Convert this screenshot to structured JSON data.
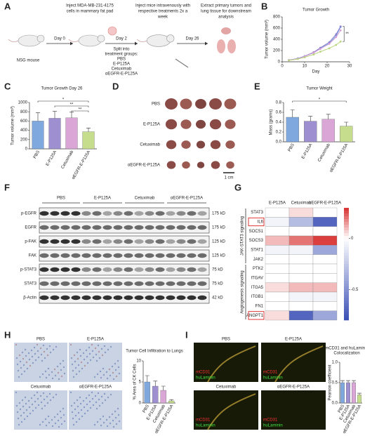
{
  "panel_letters": [
    "A",
    "B",
    "C",
    "D",
    "E",
    "F",
    "G",
    "H",
    "I"
  ],
  "panel_a": {
    "mouse_label": "NSG mouse",
    "days": [
      "Day 0",
      "Day 2",
      "Day 26"
    ],
    "step_1": [
      "Inject MDA-MB-231-4175",
      "cells in mammary fat pad"
    ],
    "step_2": [
      "Inject mice intravenously with",
      "respective treatments 2x a",
      "week"
    ],
    "step_3": [
      "Extract primary tumors and",
      "lung tissue for downstream",
      "analysis"
    ],
    "groups_title": [
      "Split into",
      "treatment groups:"
    ],
    "groups": [
      "PBS",
      "E-P125A",
      "Cetuximab",
      "αEGFR-E-P125A"
    ]
  },
  "chart_b": {
    "type": "line",
    "title": "Tumor Growth",
    "xlabel": "Day",
    "ylabel": "Tumor volume (mm³)",
    "x": [
      3,
      7,
      10,
      14,
      17,
      21,
      24,
      26
    ],
    "series": [
      {
        "color": "#6f9fe0",
        "values": [
          30,
          60,
          100,
          160,
          240,
          330,
          460,
          620
        ]
      },
      {
        "color": "#8a7fd0",
        "values": [
          30,
          60,
          100,
          170,
          250,
          350,
          490,
          630
        ]
      },
      {
        "color": "#d79fd4",
        "values": [
          30,
          55,
          95,
          160,
          230,
          320,
          440,
          560
        ]
      },
      {
        "color": "#b9d57e",
        "values": [
          25,
          50,
          80,
          130,
          180,
          240,
          300,
          360
        ]
      }
    ],
    "xlim": [
      0,
      30
    ],
    "xticks": [
      0,
      10,
      20,
      30
    ],
    "ylim": [
      0,
      800
    ],
    "yticks": [
      0,
      200,
      400,
      600,
      800
    ],
    "annotation": "**"
  },
  "chart_c": {
    "type": "bar",
    "title": "Tumor Growth Day 26",
    "ylabel": "Tumor volume (mm³)",
    "categories": [
      "PBS",
      "E-P125A",
      "Cetuximab",
      "αEGFR-E-P125A"
    ],
    "values": [
      600,
      660,
      670,
      370
    ],
    "errors": [
      180,
      150,
      120,
      80
    ],
    "colors": [
      "#7fa8de",
      "#9d8fd0",
      "#d9a6d6",
      "#c6dd8d"
    ],
    "ylim": [
      0,
      1000
    ],
    "yticks": [
      0,
      200,
      400,
      600,
      800,
      1000
    ],
    "significance": [
      "*",
      "**",
      "**"
    ]
  },
  "panel_d": {
    "rows": [
      "PBS",
      "E-P125A",
      "Cetuximab",
      "αEGFR-E-P125A"
    ],
    "scale_bar": "1 cm"
  },
  "chart_e": {
    "type": "bar",
    "title": "Tumor Weight",
    "ylabel": "Mass (grams)",
    "categories": [
      "PBS",
      "E-P125A",
      "Cetuximab",
      "αEGFR-E-P125A"
    ],
    "values": [
      0.5,
      0.42,
      0.46,
      0.32
    ],
    "errors": [
      0.15,
      0.1,
      0.1,
      0.08
    ],
    "colors": [
      "#7fa8de",
      "#9d8fd0",
      "#d9a6d6",
      "#c6dd8d"
    ],
    "ylim": [
      0,
      0.8
    ],
    "yticks": [
      {
        "value": 0,
        "label": "0.0"
      },
      0.2,
      0.4,
      0.6,
      0.8
    ],
    "significance": [
      "*"
    ]
  },
  "panel_f": {
    "groups": [
      "PBS",
      "E-P125A",
      "Cetuximab",
      "αEGFR-E-P125A"
    ],
    "proteins": [
      "p-EGFR",
      "EGFR",
      "p-FAK",
      "FAK",
      "p-STAT3",
      "STAT3",
      "β-Actin"
    ],
    "sizes": [
      "175 kD",
      "175 kD",
      "125 kD",
      "125 kD",
      "75 kD",
      "75 kD",
      "42 kD"
    ]
  },
  "heatmap_g": {
    "type": "heatmap",
    "columns": [
      "E-P125A",
      "Cetuximab",
      "αEGFR-E-P125A"
    ],
    "rows": [
      "STAT3",
      "IL6",
      "SOCS1",
      "SOCS3",
      "STAT1",
      "JAK2",
      "PTK2",
      "ITGAV",
      "ITGA5",
      "ITGB1",
      "FN1",
      "ANGPT1"
    ],
    "groups": [
      "JAK-STAT3 signaling",
      "Angiogenesis signaling"
    ],
    "values": [
      [
        0,
        0.05,
        0
      ],
      [
        -0.05,
        -0.3,
        -0.7
      ],
      [
        0,
        0,
        0
      ],
      [
        0.1,
        0.2,
        0.28
      ],
      [
        -0.05,
        -0.05,
        -0.4
      ],
      [
        0,
        0,
        0
      ],
      [
        0,
        0,
        0
      ],
      [
        0,
        0,
        0
      ],
      [
        0.05,
        0.1,
        0.1
      ],
      [
        0,
        -0.05,
        -0.05
      ],
      [
        0,
        0,
        0
      ],
      [
        0.05,
        -0.7,
        -0.4
      ]
    ],
    "clim": [
      -0.8,
      0.3
    ],
    "cticks": [
      0,
      -0.5
    ],
    "colors": {
      "low": "#3a4fb5",
      "mid": "#ffffff",
      "high": "#d7302f"
    }
  },
  "panel_h": {
    "images": [
      "PBS",
      "E-P125A",
      "Cetuximab",
      "αEGFR-E-P125A"
    ]
  },
  "chart_h": {
    "type": "bar",
    "title": "Tumor Cell Infiltration to Lungs",
    "ylabel": "% Area of CK Cells",
    "categories": [
      "PBS",
      "E-P125A",
      "Cetuximab",
      "αEGFR-E-P125A"
    ],
    "values": [
      5,
      4,
      3,
      0.5
    ],
    "errors": [
      1.5,
      1.2,
      1,
      0.3
    ],
    "colors": [
      "#7fa8de",
      "#9d8fd0",
      "#d9a6d6",
      "#c6dd8d"
    ],
    "ylim": [
      0,
      10
    ],
    "yticks": [
      0,
      5,
      10
    ]
  },
  "panel_i": {
    "images": [
      "PBS",
      "E-P125A",
      "Cetuximab",
      "αEGFR-E-P125A"
    ],
    "stain_labels": [
      "mCD31",
      "huLaminin"
    ]
  },
  "chart_i": {
    "type": "bar",
    "title": [
      "mCD31 and huLaminin",
      "Colocalization"
    ],
    "ylabel": "Pearson coefficient",
    "categories": [
      "PBS",
      "E-P125A",
      "Cetuximab",
      "αEGFR-E-P125A"
    ],
    "values": [
      0.5,
      0.5,
      0.5,
      0.2
    ],
    "errors": [
      0.05,
      0.05,
      0.05,
      0.04
    ],
    "colors": [
      "#7fa8de",
      "#9d8fd0",
      "#d9a6d6",
      "#c6dd8d"
    ],
    "ylim": [
      0,
      1
    ],
    "yticks": [
      {
        "value": 0,
        "label": "0.0"
      },
      0.5,
      {
        "value": 1,
        "label": "1.0"
      }
    ]
  }
}
